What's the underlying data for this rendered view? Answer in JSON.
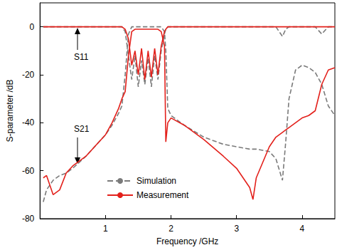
{
  "chart_data": {
    "type": "line",
    "x_label": "Frequency /GHz",
    "y_label": "S-parameter /dB",
    "annotations": [
      "S11",
      "S21"
    ],
    "xlim": [
      0,
      4.5
    ],
    "xticks": [
      1,
      2,
      3,
      4
    ],
    "ylim": [
      -80,
      10
    ],
    "yticks": [
      -80,
      -60,
      -40,
      -20,
      0
    ],
    "grid": false,
    "legend": "inside",
    "x": [
      0.05,
      0.1,
      0.2,
      0.3,
      0.4,
      0.5,
      0.7,
      0.9,
      1.0,
      1.1,
      1.2,
      1.25,
      1.3,
      1.35,
      1.4,
      1.45,
      1.5,
      1.55,
      1.6,
      1.65,
      1.7,
      1.75,
      1.8,
      1.85,
      1.9,
      1.92,
      1.95,
      2.0,
      2.2,
      2.5,
      2.8,
      3.0,
      3.2,
      3.25,
      3.3,
      3.5,
      3.6,
      3.7,
      3.75,
      3.8,
      3.9,
      4.0,
      4.1,
      4.2,
      4.3,
      4.4,
      4.5
    ],
    "series": [
      {
        "name": "Simulation",
        "color": "#7a7a7a",
        "line_style": "dashed",
        "values": [
          0,
          0,
          0,
          0,
          0,
          0,
          0,
          0,
          0,
          0,
          0,
          0,
          -2,
          -12,
          -22,
          -12,
          -25,
          -14,
          -24,
          -13,
          -25,
          -12,
          -22,
          -10,
          -3,
          -1,
          0,
          0,
          0,
          0,
          0,
          0,
          0,
          0,
          0,
          0,
          0,
          -4,
          -1,
          0,
          0,
          0,
          0,
          0,
          -3,
          0,
          0
        ]
      },
      {
        "name": "Simulation",
        "color": "#7a7a7a",
        "line_style": "dashed",
        "values": [
          -73,
          -68,
          -64,
          -62,
          -61,
          -59,
          -54,
          -48,
          -45,
          -41,
          -36,
          -33,
          -20,
          -3,
          0,
          0,
          0,
          0,
          0,
          0,
          0,
          0,
          0,
          0,
          -2,
          -10,
          -34,
          -37,
          -41,
          -46,
          -49,
          -50,
          -51,
          -51,
          -51,
          -52,
          -55,
          -64,
          -48,
          -30,
          -18,
          -16,
          -17,
          -19,
          -24,
          -33,
          -37
        ]
      },
      {
        "name": "Measurement",
        "color": "#e3201b",
        "line_style": "solid",
        "values": [
          0,
          0,
          0,
          0,
          0,
          0,
          0,
          0,
          0,
          0,
          0,
          0,
          -1,
          -5,
          -16,
          -10,
          -20,
          -9,
          -22,
          -10,
          -21,
          -9,
          -20,
          -8,
          -2,
          -1,
          0,
          0,
          0,
          0,
          0,
          0,
          0,
          0,
          0,
          0,
          0,
          0,
          0,
          0,
          0,
          0,
          0,
          0,
          0,
          0,
          0
        ]
      },
      {
        "name": "Measurement",
        "color": "#e3201b",
        "line_style": "solid",
        "values": [
          -63,
          -62,
          -70,
          -68,
          -61,
          -58,
          -54,
          -48,
          -45,
          -40,
          -34,
          -30,
          -27,
          -12,
          -2,
          -1,
          -1,
          -1,
          -1,
          -1,
          -1,
          -1,
          -1,
          -2,
          -8,
          -48,
          -40,
          -38,
          -41,
          -47,
          -54,
          -59,
          -67,
          -72,
          -63,
          -50,
          -46,
          -44,
          -43,
          -42,
          -40,
          -38,
          -37,
          -35,
          -24,
          -18,
          -17
        ]
      }
    ]
  }
}
